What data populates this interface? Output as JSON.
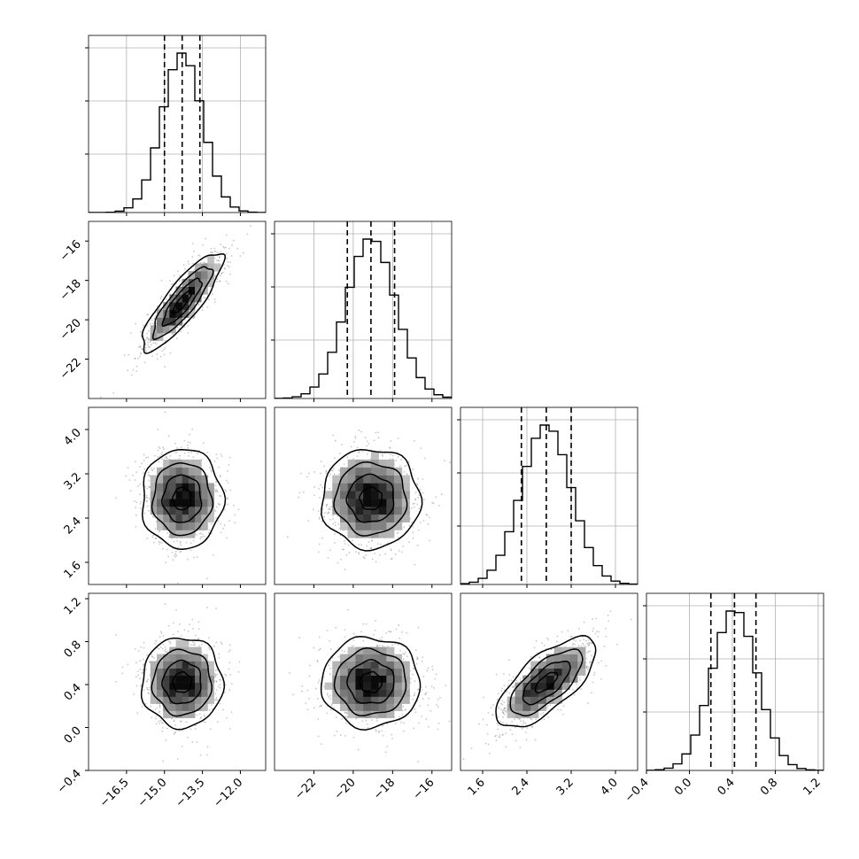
{
  "chart_data": {
    "type": "corner",
    "parameters": [
      {
        "range": [
          -18.0,
          -11.0
        ],
        "ticks": [
          -16.5,
          -15.0,
          -13.5,
          -12.0
        ],
        "tick_labels": [
          "−16.5",
          "−15.0",
          "−13.5",
          "−12.0"
        ],
        "quantiles": [
          -15.0,
          -14.3,
          -13.6
        ],
        "center": -14.3,
        "sigma": 0.8
      },
      {
        "range": [
          -24.0,
          -15.0
        ],
        "ticks": [
          -22,
          -20,
          -18,
          -16
        ],
        "tick_labels": [
          "−22",
          "−20",
          "−18",
          "−16"
        ],
        "quantiles": [
          -20.3,
          -19.1,
          -17.9
        ],
        "center": -19.1,
        "sigma": 1.25
      },
      {
        "range": [
          1.2,
          4.4
        ],
        "ticks": [
          1.6,
          2.4,
          3.2,
          4.0
        ],
        "tick_labels": [
          "1.6",
          "2.4",
          "3.2",
          "4.0"
        ],
        "quantiles": [
          2.3,
          2.75,
          3.2
        ],
        "center": 2.75,
        "sigma": 0.45
      },
      {
        "range": [
          -0.4,
          1.25
        ],
        "ticks": [
          -0.4,
          0.0,
          0.4,
          0.8,
          1.2
        ],
        "tick_labels": [
          "−0.4",
          "0.0",
          "0.4",
          "0.8",
          "1.2"
        ],
        "quantiles": [
          0.2,
          0.42,
          0.62
        ],
        "center": 0.42,
        "sigma": 0.21
      }
    ],
    "correlations": [
      [
        1.0,
        0.85,
        0.0,
        0.0
      ],
      [
        0.85,
        1.0,
        0.0,
        0.0
      ],
      [
        0.0,
        0.0,
        1.0,
        0.7
      ],
      [
        0.0,
        0.0,
        0.7,
        1.0
      ]
    ],
    "histogram_bins": 20,
    "grid": true,
    "colors": {
      "line": "#000000",
      "scatter": "#9a9a9a",
      "grid": "#b0b0b0"
    }
  }
}
